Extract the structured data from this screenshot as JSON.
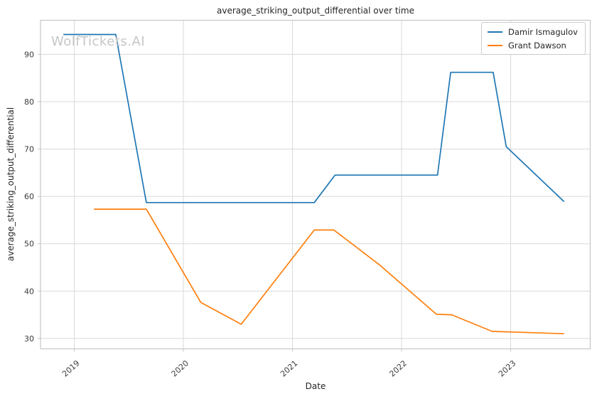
{
  "title": "average_striking_output_differential over time",
  "watermark": "WolfTickets.AI",
  "chart_data": {
    "type": "line",
    "title": "average_striking_output_differential over time",
    "xlabel": "Date",
    "ylabel": "average_striking_output_differential",
    "xlim": [
      2018.69,
      2023.73
    ],
    "ylim": [
      27.8,
      97.2
    ],
    "x_ticks": [
      2019,
      2020,
      2021,
      2022,
      2023
    ],
    "x_tick_labels": [
      "2019",
      "2020",
      "2021",
      "2022",
      "2023"
    ],
    "y_ticks": [
      30,
      40,
      50,
      60,
      70,
      80,
      90
    ],
    "y_tick_labels": [
      "30",
      "40",
      "50",
      "60",
      "70",
      "80",
      "90"
    ],
    "grid": true,
    "legend_position": "upper right",
    "series": [
      {
        "name": "Damir Ismagulov",
        "color": "#1f77b4",
        "points": [
          [
            2018.9,
            94.2
          ],
          [
            2019.38,
            94.2
          ],
          [
            2019.66,
            58.7
          ],
          [
            2021.2,
            58.7
          ],
          [
            2021.39,
            64.5
          ],
          [
            2022.33,
            64.5
          ],
          [
            2022.45,
            86.2
          ],
          [
            2022.84,
            86.2
          ],
          [
            2022.96,
            70.5
          ],
          [
            2023.49,
            58.9
          ]
        ]
      },
      {
        "name": "Grant Dawson",
        "color": "#ff7f0e",
        "points": [
          [
            2019.18,
            57.3
          ],
          [
            2019.66,
            57.3
          ],
          [
            2020.16,
            37.6
          ],
          [
            2020.53,
            33.0
          ],
          [
            2021.2,
            52.9
          ],
          [
            2021.38,
            52.9
          ],
          [
            2021.8,
            45.5
          ],
          [
            2022.32,
            35.1
          ],
          [
            2022.46,
            35.0
          ],
          [
            2022.83,
            31.5
          ],
          [
            2023.49,
            31.0
          ]
        ]
      }
    ],
    "colors": {
      "grid": "#d9d9d9",
      "spine": "#c6c6c6",
      "tick_text": "#3b3b3b",
      "series_1": "#1f77b4",
      "series_2": "#ff7f0e"
    }
  }
}
